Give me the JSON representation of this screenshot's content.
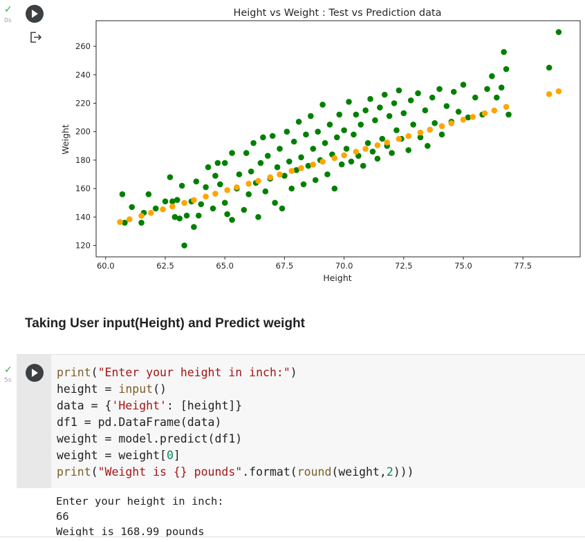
{
  "cell1": {
    "status_icon": "check-icon",
    "exec_time": "0s"
  },
  "chart_data": {
    "type": "scatter",
    "title": "Height vs Weight : Test vs Prediction data",
    "xlabel": "Height",
    "ylabel": "Weight",
    "xlim": [
      59.6,
      79.9
    ],
    "ylim": [
      112,
      278
    ],
    "xticks": [
      "60.0",
      "62.5",
      "65.0",
      "67.5",
      "70.0",
      "72.5",
      "75.0",
      "77.5"
    ],
    "yticks": [
      "120",
      "140",
      "160",
      "180",
      "200",
      "220",
      "240",
      "260"
    ],
    "grid": false,
    "legend": "none",
    "series": [
      {
        "role": "test data (actual)",
        "color": "#008000",
        "points": [
          [
            60.7,
            156
          ],
          [
            60.8,
            136
          ],
          [
            61.1,
            147
          ],
          [
            61.5,
            136
          ],
          [
            61.6,
            143
          ],
          [
            61.8,
            156
          ],
          [
            62.1,
            146
          ],
          [
            62.5,
            151
          ],
          [
            62.7,
            168
          ],
          [
            62.8,
            151
          ],
          [
            62.9,
            140
          ],
          [
            63.0,
            152
          ],
          [
            63.1,
            139
          ],
          [
            63.2,
            162
          ],
          [
            63.3,
            120
          ],
          [
            63.4,
            141
          ],
          [
            63.6,
            151
          ],
          [
            63.7,
            133
          ],
          [
            63.8,
            165
          ],
          [
            63.9,
            141
          ],
          [
            64.0,
            149
          ],
          [
            64.2,
            161
          ],
          [
            64.3,
            175
          ],
          [
            64.5,
            146
          ],
          [
            64.6,
            169
          ],
          [
            64.7,
            178
          ],
          [
            64.8,
            163
          ],
          [
            65.0,
            150
          ],
          [
            65.0,
            178
          ],
          [
            65.1,
            142
          ],
          [
            65.3,
            185
          ],
          [
            65.3,
            138
          ],
          [
            65.5,
            160
          ],
          [
            65.6,
            170
          ],
          [
            65.8,
            145
          ],
          [
            65.9,
            185
          ],
          [
            66.0,
            156
          ],
          [
            66.1,
            172
          ],
          [
            66.2,
            192
          ],
          [
            66.3,
            164
          ],
          [
            66.4,
            140
          ],
          [
            66.5,
            178
          ],
          [
            66.6,
            196
          ],
          [
            66.7,
            158
          ],
          [
            66.8,
            183
          ],
          [
            66.9,
            167
          ],
          [
            67.0,
            197
          ],
          [
            67.1,
            150
          ],
          [
            67.2,
            175
          ],
          [
            67.3,
            188
          ],
          [
            67.4,
            146
          ],
          [
            67.5,
            169
          ],
          [
            67.6,
            200
          ],
          [
            67.7,
            179
          ],
          [
            67.8,
            160
          ],
          [
            67.9,
            193
          ],
          [
            68.0,
            173
          ],
          [
            68.1,
            207
          ],
          [
            68.2,
            182
          ],
          [
            68.3,
            163
          ],
          [
            68.4,
            198
          ],
          [
            68.5,
            176
          ],
          [
            68.6,
            211
          ],
          [
            68.7,
            188
          ],
          [
            68.8,
            166
          ],
          [
            68.9,
            200
          ],
          [
            69.0,
            180
          ],
          [
            69.1,
            219
          ],
          [
            69.2,
            192
          ],
          [
            69.3,
            170
          ],
          [
            69.4,
            205
          ],
          [
            69.5,
            184
          ],
          [
            69.6,
            160
          ],
          [
            69.7,
            196
          ],
          [
            69.8,
            212
          ],
          [
            69.9,
            177
          ],
          [
            70.0,
            201
          ],
          [
            70.1,
            188
          ],
          [
            70.2,
            221
          ],
          [
            70.3,
            179
          ],
          [
            70.4,
            198
          ],
          [
            70.5,
            212
          ],
          [
            70.6,
            183
          ],
          [
            70.7,
            205
          ],
          [
            70.8,
            176
          ],
          [
            70.9,
            215
          ],
          [
            71.0,
            192
          ],
          [
            71.1,
            223
          ],
          [
            71.2,
            186
          ],
          [
            71.3,
            208
          ],
          [
            71.4,
            181
          ],
          [
            71.5,
            217
          ],
          [
            71.6,
            195
          ],
          [
            71.7,
            226
          ],
          [
            71.8,
            190
          ],
          [
            71.9,
            211
          ],
          [
            72.0,
            185
          ],
          [
            72.1,
            220
          ],
          [
            72.2,
            201
          ],
          [
            72.3,
            229
          ],
          [
            72.4,
            195
          ],
          [
            72.5,
            213
          ],
          [
            72.7,
            187
          ],
          [
            72.8,
            222
          ],
          [
            72.9,
            205
          ],
          [
            73.1,
            227
          ],
          [
            73.2,
            196
          ],
          [
            73.4,
            215
          ],
          [
            73.5,
            190
          ],
          [
            73.7,
            224
          ],
          [
            73.8,
            206
          ],
          [
            74.0,
            230
          ],
          [
            74.1,
            198
          ],
          [
            74.3,
            218
          ],
          [
            74.5,
            207
          ],
          [
            74.6,
            228
          ],
          [
            74.8,
            214
          ],
          [
            75.0,
            233
          ],
          [
            75.2,
            210
          ],
          [
            75.5,
            224
          ],
          [
            75.8,
            212
          ],
          [
            76.0,
            230
          ],
          [
            76.2,
            239
          ],
          [
            76.4,
            224
          ],
          [
            76.6,
            231
          ],
          [
            76.8,
            244
          ],
          [
            76.9,
            212
          ],
          [
            76.7,
            256
          ],
          [
            78.6,
            245
          ],
          [
            79.0,
            270
          ]
        ]
      },
      {
        "role": "prediction",
        "color": "#ffa500",
        "points": [
          [
            60.6,
            136.5
          ],
          [
            61.0,
            138.4
          ],
          [
            61.5,
            140.9
          ],
          [
            61.9,
            142.9
          ],
          [
            62.4,
            145.4
          ],
          [
            62.8,
            147.4
          ],
          [
            63.3,
            149.9
          ],
          [
            63.7,
            151.9
          ],
          [
            64.2,
            154.4
          ],
          [
            64.6,
            156.4
          ],
          [
            65.1,
            158.9
          ],
          [
            65.5,
            160.9
          ],
          [
            66.0,
            163.4
          ],
          [
            66.4,
            165.4
          ],
          [
            66.9,
            167.9
          ],
          [
            67.3,
            169.9
          ],
          [
            67.8,
            172.4
          ],
          [
            68.2,
            174.4
          ],
          [
            68.7,
            176.9
          ],
          [
            69.1,
            178.9
          ],
          [
            69.6,
            181.4
          ],
          [
            70.0,
            183.4
          ],
          [
            70.5,
            185.9
          ],
          [
            70.9,
            187.9
          ],
          [
            71.4,
            190.4
          ],
          [
            71.8,
            192.4
          ],
          [
            72.3,
            194.9
          ],
          [
            72.7,
            196.9
          ],
          [
            73.2,
            199.4
          ],
          [
            73.6,
            201.4
          ],
          [
            74.1,
            203.9
          ],
          [
            74.5,
            205.9
          ],
          [
            75.0,
            208.4
          ],
          [
            75.4,
            210.4
          ],
          [
            75.9,
            212.9
          ],
          [
            76.3,
            214.9
          ],
          [
            76.8,
            217.4
          ],
          [
            78.6,
            226.4
          ],
          [
            79.0,
            228.4
          ]
        ]
      }
    ]
  },
  "markdown": {
    "heading": "Taking User input(Height) and Predict weight"
  },
  "cell2": {
    "status_icon": "check-icon",
    "exec_time": "5s",
    "output": [
      "Enter your height in inch:",
      "66",
      "Weight is 168.99 pounds"
    ]
  }
}
